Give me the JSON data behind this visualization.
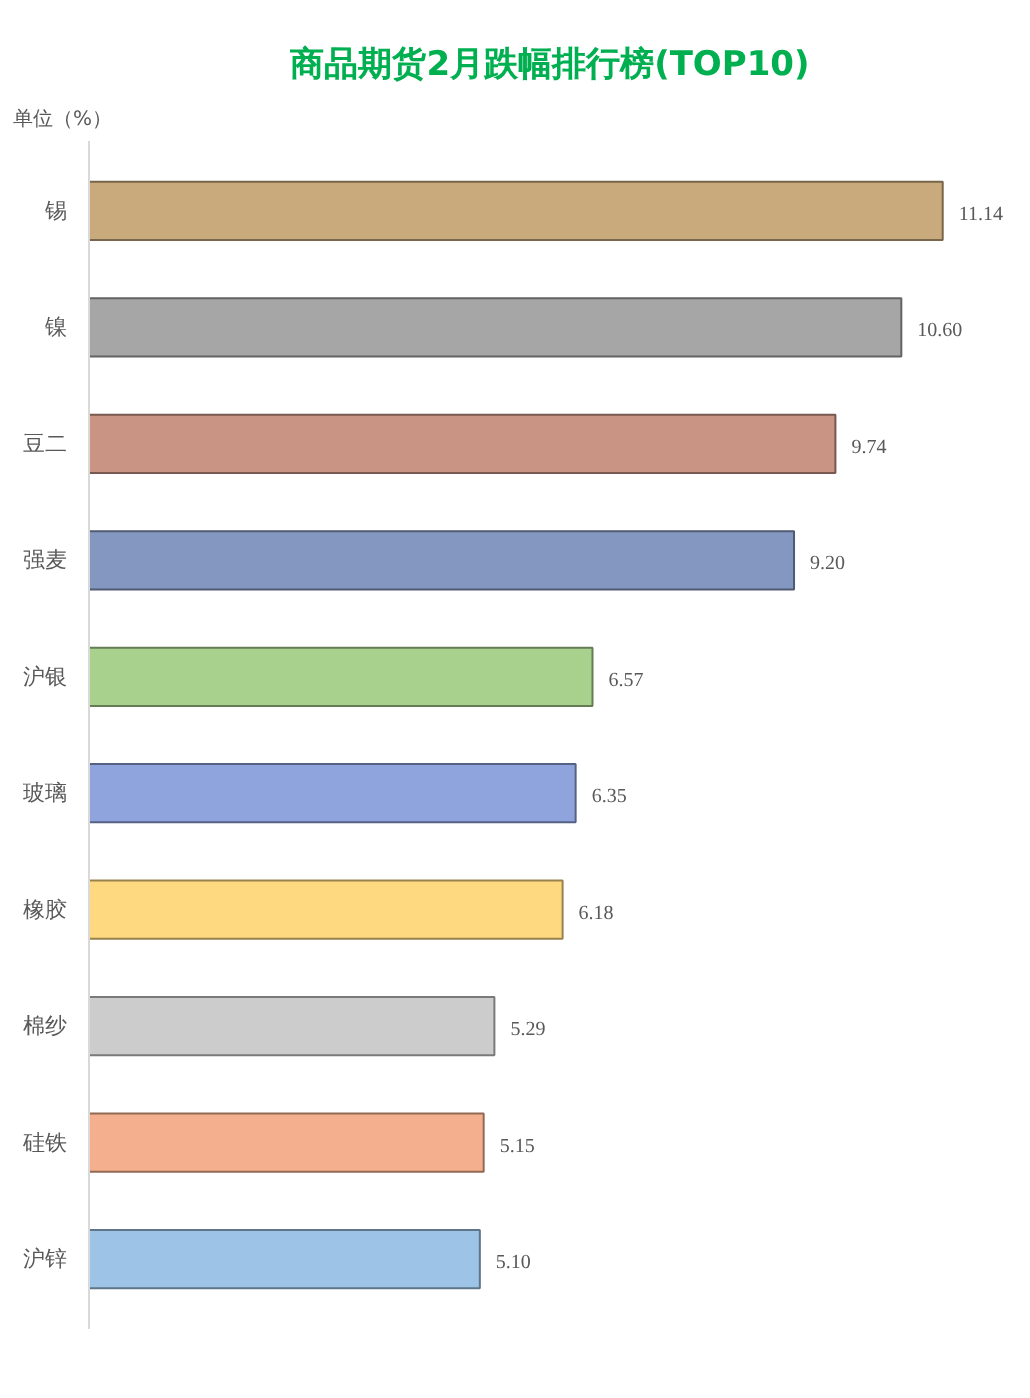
{
  "chart_data": {
    "type": "bar",
    "orientation": "horizontal",
    "title": "商品期货2月跌幅排行榜(TOP10)",
    "annotations": [
      "单位（%）"
    ],
    "categories": [
      "锡",
      "镍",
      "豆二",
      "强麦",
      "沪银",
      "玻璃",
      "橡胶",
      "棉纱",
      "硅铁",
      "沪锌"
    ],
    "values": [
      11.14,
      10.6,
      9.74,
      9.2,
      6.57,
      6.35,
      6.18,
      5.29,
      5.15,
      5.1
    ],
    "value_labels": [
      "11.14",
      "10.60",
      "9.74",
      "9.20",
      "6.57",
      "6.35",
      "6.18",
      "5.29",
      "5.15",
      "5.10"
    ],
    "colors": [
      "#c8aa7c",
      "#a6a6a6",
      "#c99484",
      "#8497c0",
      "#a9d18e",
      "#8fa4dc",
      "#ffd97f",
      "#cccccc",
      "#f4b08e",
      "#9dc3e6"
    ],
    "grid": false
  }
}
